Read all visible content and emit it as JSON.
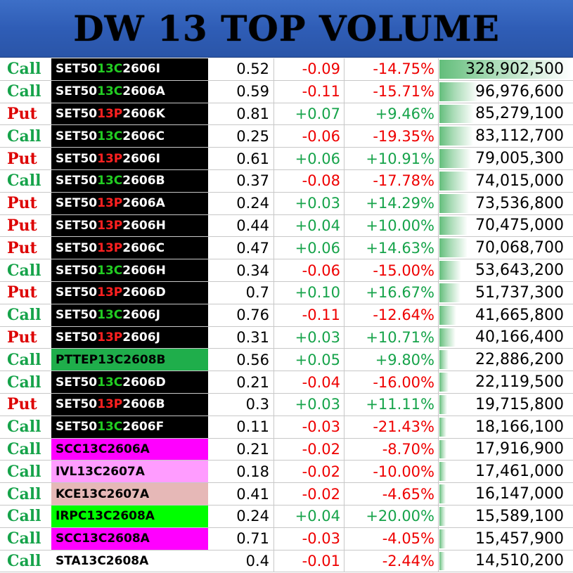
{
  "title": "DW 13 TOP VOLUME",
  "colors": {
    "title_bg": "#2f5db6",
    "call": "#16a34a",
    "put": "#dd0000",
    "positive": "#16a34a",
    "negative": "#ee0000",
    "volume_bar": "#63be7b"
  },
  "max_volume": 328902500,
  "rows": [
    {
      "type": "Call",
      "sym_pre": "SET50",
      "sym_mid": "13C",
      "sym_post": "2606I",
      "sym_bg": "#000000",
      "last": "0.52",
      "chg": "-0.09",
      "pct": "-14.75%",
      "volume": "328,902,500",
      "vol_num": 328902500
    },
    {
      "type": "Call",
      "sym_pre": "SET50",
      "sym_mid": "13C",
      "sym_post": "2606A",
      "sym_bg": "#000000",
      "last": "0.59",
      "chg": "-0.11",
      "pct": "-15.71%",
      "volume": "96,976,600",
      "vol_num": 96976600
    },
    {
      "type": "Put",
      "sym_pre": "SET50",
      "sym_mid": "13P",
      "sym_post": "2606K",
      "sym_bg": "#000000",
      "last": "0.81",
      "chg": "+0.07",
      "pct": "+9.46%",
      "volume": "85,279,100",
      "vol_num": 85279100
    },
    {
      "type": "Call",
      "sym_pre": "SET50",
      "sym_mid": "13C",
      "sym_post": "2606C",
      "sym_bg": "#000000",
      "last": "0.25",
      "chg": "-0.06",
      "pct": "-19.35%",
      "volume": "83,112,700",
      "vol_num": 83112700
    },
    {
      "type": "Put",
      "sym_pre": "SET50",
      "sym_mid": "13P",
      "sym_post": "2606I",
      "sym_bg": "#000000",
      "last": "0.61",
      "chg": "+0.06",
      "pct": "+10.91%",
      "volume": "79,005,300",
      "vol_num": 79005300
    },
    {
      "type": "Call",
      "sym_pre": "SET50",
      "sym_mid": "13C",
      "sym_post": "2606B",
      "sym_bg": "#000000",
      "last": "0.37",
      "chg": "-0.08",
      "pct": "-17.78%",
      "volume": "74,015,000",
      "vol_num": 74015000
    },
    {
      "type": "Put",
      "sym_pre": "SET50",
      "sym_mid": "13P",
      "sym_post": "2606A",
      "sym_bg": "#000000",
      "last": "0.24",
      "chg": "+0.03",
      "pct": "+14.29%",
      "volume": "73,536,800",
      "vol_num": 73536800
    },
    {
      "type": "Put",
      "sym_pre": "SET50",
      "sym_mid": "13P",
      "sym_post": "2606H",
      "sym_bg": "#000000",
      "last": "0.44",
      "chg": "+0.04",
      "pct": "+10.00%",
      "volume": "70,475,000",
      "vol_num": 70475000
    },
    {
      "type": "Put",
      "sym_pre": "SET50",
      "sym_mid": "13P",
      "sym_post": "2606C",
      "sym_bg": "#000000",
      "last": "0.47",
      "chg": "+0.06",
      "pct": "+14.63%",
      "volume": "70,068,700",
      "vol_num": 70068700
    },
    {
      "type": "Call",
      "sym_pre": "SET50",
      "sym_mid": "13C",
      "sym_post": "2606H",
      "sym_bg": "#000000",
      "last": "0.34",
      "chg": "-0.06",
      "pct": "-15.00%",
      "volume": "53,643,200",
      "vol_num": 53643200
    },
    {
      "type": "Put",
      "sym_pre": "SET50",
      "sym_mid": "13P",
      "sym_post": "2606D",
      "sym_bg": "#000000",
      "last": "0.7",
      "chg": "+0.10",
      "pct": "+16.67%",
      "volume": "51,737,300",
      "vol_num": 51737300
    },
    {
      "type": "Call",
      "sym_pre": "SET50",
      "sym_mid": "13C",
      "sym_post": "2606J",
      "sym_bg": "#000000",
      "last": "0.76",
      "chg": "-0.11",
      "pct": "-12.64%",
      "volume": "41,665,800",
      "vol_num": 41665800
    },
    {
      "type": "Put",
      "sym_pre": "SET50",
      "sym_mid": "13P",
      "sym_post": "2606J",
      "sym_bg": "#000000",
      "last": "0.31",
      "chg": "+0.03",
      "pct": "+10.71%",
      "volume": "40,166,400",
      "vol_num": 40166400
    },
    {
      "type": "Call",
      "sym_pre": "PTTEP13C2608B",
      "sym_mid": "",
      "sym_post": "",
      "sym_bg": "#1fae4b",
      "sym_dark": true,
      "last": "0.56",
      "chg": "+0.05",
      "pct": "+9.80%",
      "volume": "22,886,200",
      "vol_num": 22886200
    },
    {
      "type": "Call",
      "sym_pre": "SET50",
      "sym_mid": "13C",
      "sym_post": "2606D",
      "sym_bg": "#000000",
      "last": "0.21",
      "chg": "-0.04",
      "pct": "-16.00%",
      "volume": "22,119,500",
      "vol_num": 22119500
    },
    {
      "type": "Put",
      "sym_pre": "SET50",
      "sym_mid": "13P",
      "sym_post": "2606B",
      "sym_bg": "#000000",
      "last": "0.3",
      "chg": "+0.03",
      "pct": "+11.11%",
      "volume": "19,715,800",
      "vol_num": 19715800
    },
    {
      "type": "Call",
      "sym_pre": "SET50",
      "sym_mid": "13C",
      "sym_post": "2606F",
      "sym_bg": "#000000",
      "last": "0.11",
      "chg": "-0.03",
      "pct": "-21.43%",
      "volume": "18,166,100",
      "vol_num": 18166100
    },
    {
      "type": "Call",
      "sym_pre": "SCC13C2606A",
      "sym_mid": "",
      "sym_post": "",
      "sym_bg": "#ff00ff",
      "sym_dark": true,
      "last": "0.21",
      "chg": "-0.02",
      "pct": "-8.70%",
      "volume": "17,916,900",
      "vol_num": 17916900
    },
    {
      "type": "Call",
      "sym_pre": "IVL13C2607A",
      "sym_mid": "",
      "sym_post": "",
      "sym_bg": "#ff9cff",
      "sym_dark": true,
      "last": "0.18",
      "chg": "-0.02",
      "pct": "-10.00%",
      "volume": "17,461,000",
      "vol_num": 17461000
    },
    {
      "type": "Call",
      "sym_pre": "KCE13C2607A",
      "sym_mid": "",
      "sym_post": "",
      "sym_bg": "#e6b8b7",
      "sym_dark": true,
      "last": "0.41",
      "chg": "-0.02",
      "pct": "-4.65%",
      "volume": "16,147,000",
      "vol_num": 16147000
    },
    {
      "type": "Call",
      "sym_pre": "IRPC13C2608A",
      "sym_mid": "",
      "sym_post": "",
      "sym_bg": "#00ff00",
      "sym_dark": true,
      "last": "0.24",
      "chg": "+0.04",
      "pct": "+20.00%",
      "volume": "15,589,100",
      "vol_num": 15589100
    },
    {
      "type": "Call",
      "sym_pre": "SCC13C2608A",
      "sym_mid": "",
      "sym_post": "",
      "sym_bg": "#ff00ff",
      "sym_dark": true,
      "last": "0.71",
      "chg": "-0.03",
      "pct": "-4.05%",
      "volume": "15,457,900",
      "vol_num": 15457900
    },
    {
      "type": "Call",
      "sym_pre": "STA13C2608A",
      "sym_mid": "",
      "sym_post": "",
      "sym_bg": "#ffffff",
      "sym_dark": true,
      "last": "0.4",
      "chg": "-0.01",
      "pct": "-2.44%",
      "volume": "14,510,200",
      "vol_num": 14510200
    }
  ]
}
